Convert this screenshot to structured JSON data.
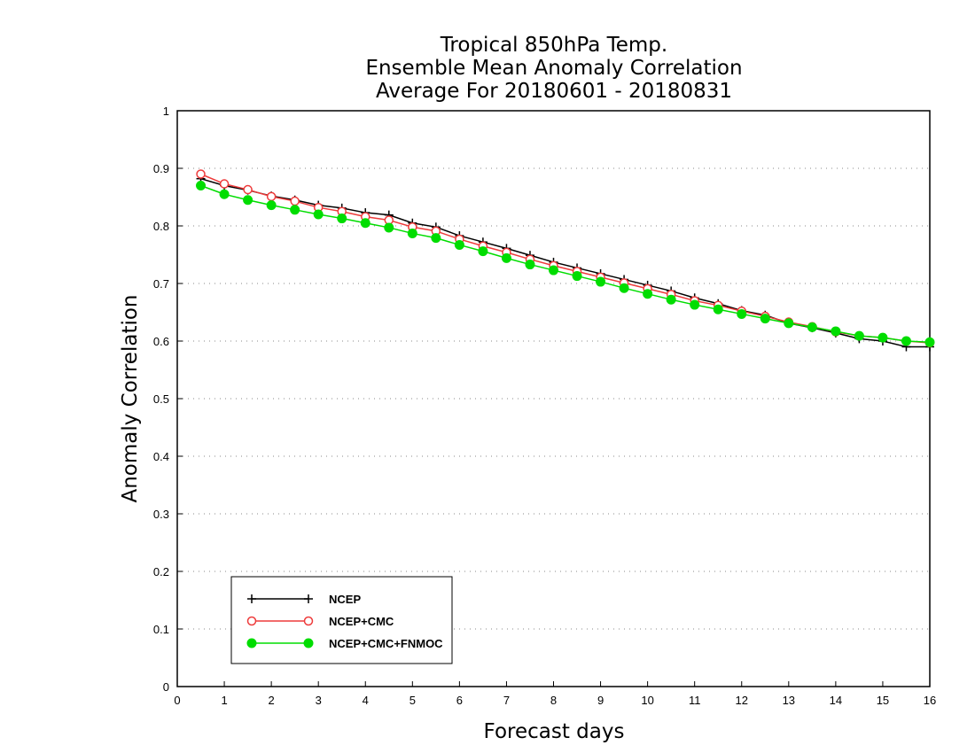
{
  "chart_data": {
    "type": "line",
    "title": [
      "Tropical 850hPa Temp.",
      "Ensemble Mean Anomaly Correlation",
      "Average For 20180601 - 20180831"
    ],
    "xlabel": "Forecast days",
    "ylabel": "Anomaly Correlation",
    "xlim": [
      0,
      16
    ],
    "ylim": [
      0,
      1
    ],
    "xticks": [
      0,
      1,
      2,
      3,
      4,
      5,
      6,
      7,
      8,
      9,
      10,
      11,
      12,
      13,
      14,
      15,
      16
    ],
    "yticks": [
      0,
      0.1,
      0.2,
      0.3,
      0.4,
      0.5,
      0.6,
      0.7,
      0.8,
      0.9,
      1
    ],
    "ytick_labels": [
      "0",
      "0.1",
      "0.2",
      "0.3",
      "0.4",
      "0.5",
      "0.6",
      "0.7",
      "0.8",
      "0.9",
      "1"
    ],
    "grid": "horizontal dotted",
    "legend_position": "bottom-left",
    "x": [
      0.5,
      1,
      1.5,
      2,
      2.5,
      3,
      3.5,
      4,
      4.5,
      5,
      5.5,
      6,
      6.5,
      7,
      7.5,
      8,
      8.5,
      9,
      9.5,
      10,
      10.5,
      11,
      11.5,
      12,
      12.5,
      13,
      13.5,
      14,
      14.5,
      15,
      15.5,
      16
    ],
    "series": [
      {
        "name": "NCEP",
        "color": "#000000",
        "marker": "plus",
        "values": [
          0.882,
          0.87,
          0.862,
          0.852,
          0.845,
          0.836,
          0.831,
          0.823,
          0.819,
          0.805,
          0.798,
          0.783,
          0.772,
          0.761,
          0.749,
          0.737,
          0.727,
          0.717,
          0.707,
          0.697,
          0.687,
          0.675,
          0.665,
          0.653,
          0.645,
          0.631,
          0.623,
          0.614,
          0.604,
          0.6,
          0.59,
          0.59
        ]
      },
      {
        "name": "NCEP+CMC",
        "color": "#ee3b3b",
        "marker": "open-circle",
        "values": [
          0.89,
          0.873,
          0.863,
          0.851,
          0.843,
          0.832,
          0.825,
          0.816,
          0.81,
          0.798,
          0.791,
          0.777,
          0.765,
          0.754,
          0.742,
          0.731,
          0.721,
          0.711,
          0.701,
          0.691,
          0.681,
          0.67,
          0.662,
          0.652,
          0.643,
          0.633,
          0.625,
          0.616,
          0.609,
          0.606,
          0.6,
          0.597
        ]
      },
      {
        "name": "NCEP+CMC+FNMOC",
        "color": "#00dd00",
        "marker": "filled-circle",
        "values": [
          0.87,
          0.855,
          0.845,
          0.836,
          0.828,
          0.82,
          0.813,
          0.805,
          0.797,
          0.787,
          0.779,
          0.767,
          0.756,
          0.744,
          0.733,
          0.723,
          0.713,
          0.703,
          0.692,
          0.682,
          0.672,
          0.663,
          0.655,
          0.647,
          0.639,
          0.631,
          0.624,
          0.617,
          0.609,
          0.606,
          0.6,
          0.598
        ]
      }
    ]
  }
}
